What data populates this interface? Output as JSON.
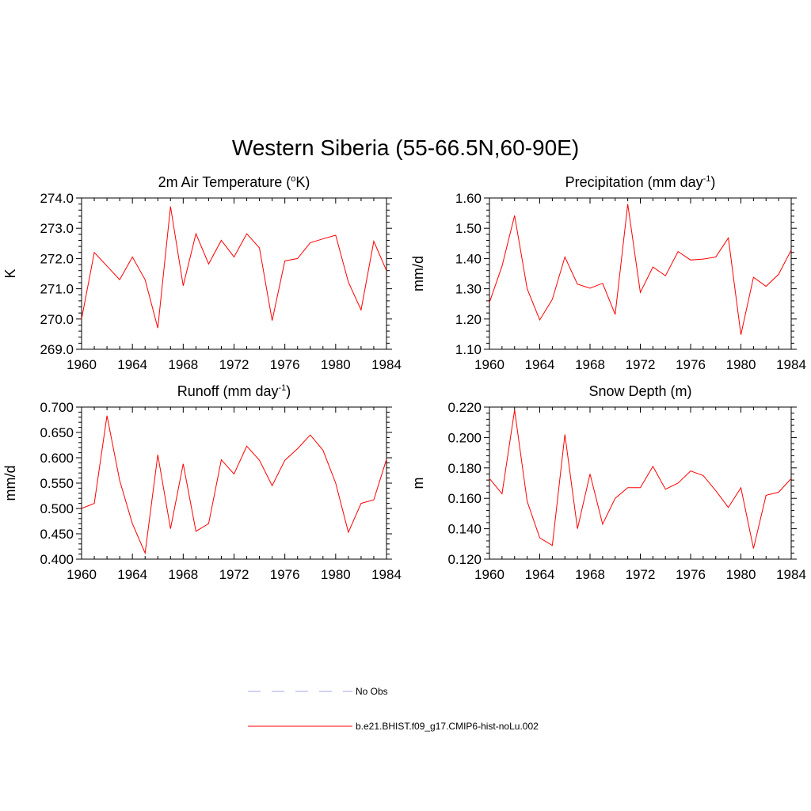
{
  "title": "Western Siberia (55-66.5N,60-90E)",
  "legend": [
    {
      "label": "No Obs",
      "color": "#a6a6f0",
      "style": "dashed"
    },
    {
      "label": "b.e21.BHIST.f09_g17.CMIP6-hist-noLu.002",
      "color": "#ff0000",
      "style": "solid"
    }
  ],
  "chart_data": [
    {
      "type": "line",
      "title": "2m Air Temperature (",
      "title_sup": "o",
      "title_after": "K)",
      "ylabel": "K",
      "xlim": [
        1960,
        1984
      ],
      "ylim": [
        269.0,
        274.0
      ],
      "xticks": [
        "1960",
        "1964",
        "1968",
        "1972",
        "1976",
        "1980",
        "1984"
      ],
      "yticks": [
        "269.0",
        "270.0",
        "271.0",
        "272.0",
        "273.0",
        "274.0"
      ],
      "series": [
        {
          "color": "#ff0000",
          "x": [
            1960,
            1961,
            1962,
            1963,
            1964,
            1965,
            1966,
            1967,
            1968,
            1969,
            1970,
            1971,
            1972,
            1973,
            1974,
            1975,
            1976,
            1977,
            1978,
            1979,
            1980,
            1981,
            1982,
            1983,
            1984
          ],
          "values": [
            270.0,
            272.2,
            271.75,
            271.3,
            272.05,
            271.3,
            269.7,
            273.72,
            271.1,
            272.82,
            271.82,
            272.6,
            272.05,
            272.82,
            272.35,
            269.95,
            271.92,
            272.0,
            272.52,
            272.65,
            272.77,
            271.22,
            270.3,
            272.57,
            271.6
          ]
        }
      ]
    },
    {
      "type": "line",
      "title": "Precipitation (mm day",
      "title_sup": "-1",
      "title_after": ")",
      "ylabel": "mm/d",
      "xlim": [
        1960,
        1984
      ],
      "ylim": [
        1.1,
        1.6
      ],
      "xticks": [
        "1960",
        "1964",
        "1968",
        "1972",
        "1976",
        "1980",
        "1984"
      ],
      "yticks": [
        "1.10",
        "1.20",
        "1.30",
        "1.40",
        "1.50",
        "1.60"
      ],
      "series": [
        {
          "color": "#ff0000",
          "x": [
            1960,
            1961,
            1962,
            1963,
            1964,
            1965,
            1966,
            1967,
            1968,
            1969,
            1970,
            1971,
            1972,
            1973,
            1974,
            1975,
            1976,
            1977,
            1978,
            1979,
            1980,
            1981,
            1982,
            1983,
            1984
          ],
          "values": [
            1.255,
            1.375,
            1.542,
            1.3,
            1.197,
            1.265,
            1.405,
            1.315,
            1.302,
            1.318,
            1.215,
            1.58,
            1.288,
            1.372,
            1.343,
            1.423,
            1.395,
            1.398,
            1.405,
            1.468,
            1.148,
            1.338,
            1.308,
            1.348,
            1.428
          ]
        }
      ]
    },
    {
      "type": "line",
      "title": "Runoff (mm day",
      "title_sup": "-1",
      "title_after": ")",
      "ylabel": "mm/d",
      "xlim": [
        1960,
        1984
      ],
      "ylim": [
        0.4,
        0.7
      ],
      "xticks": [
        "1960",
        "1964",
        "1968",
        "1972",
        "1976",
        "1980",
        "1984"
      ],
      "yticks": [
        "0.400",
        "0.450",
        "0.500",
        "0.550",
        "0.600",
        "0.650",
        "0.700"
      ],
      "series": [
        {
          "color": "#ff0000",
          "x": [
            1960,
            1961,
            1962,
            1963,
            1964,
            1965,
            1966,
            1967,
            1968,
            1969,
            1970,
            1971,
            1972,
            1973,
            1974,
            1975,
            1976,
            1977,
            1978,
            1979,
            1980,
            1981,
            1982,
            1983,
            1984
          ],
          "values": [
            0.5,
            0.51,
            0.683,
            0.555,
            0.47,
            0.412,
            0.606,
            0.46,
            0.588,
            0.455,
            0.47,
            0.596,
            0.568,
            0.623,
            0.595,
            0.545,
            0.595,
            0.618,
            0.645,
            0.615,
            0.55,
            0.453,
            0.51,
            0.517,
            0.597
          ]
        }
      ]
    },
    {
      "type": "line",
      "title": "Snow Depth (m)",
      "title_sup": "",
      "title_after": "",
      "ylabel": "m",
      "xlim": [
        1960,
        1984
      ],
      "ylim": [
        0.12,
        0.22
      ],
      "xticks": [
        "1960",
        "1964",
        "1968",
        "1972",
        "1976",
        "1980",
        "1984"
      ],
      "yticks": [
        "0.120",
        "0.140",
        "0.160",
        "0.180",
        "0.200",
        "0.220"
      ],
      "series": [
        {
          "color": "#ff0000",
          "x": [
            1960,
            1961,
            1962,
            1963,
            1964,
            1965,
            1966,
            1967,
            1968,
            1969,
            1970,
            1971,
            1972,
            1973,
            1974,
            1975,
            1976,
            1977,
            1978,
            1979,
            1980,
            1981,
            1982,
            1983,
            1984
          ],
          "values": [
            0.173,
            0.163,
            0.218,
            0.158,
            0.134,
            0.129,
            0.202,
            0.14,
            0.176,
            0.143,
            0.16,
            0.167,
            0.167,
            0.181,
            0.166,
            0.17,
            0.178,
            0.175,
            0.165,
            0.154,
            0.167,
            0.127,
            0.162,
            0.164,
            0.173
          ]
        }
      ]
    }
  ]
}
